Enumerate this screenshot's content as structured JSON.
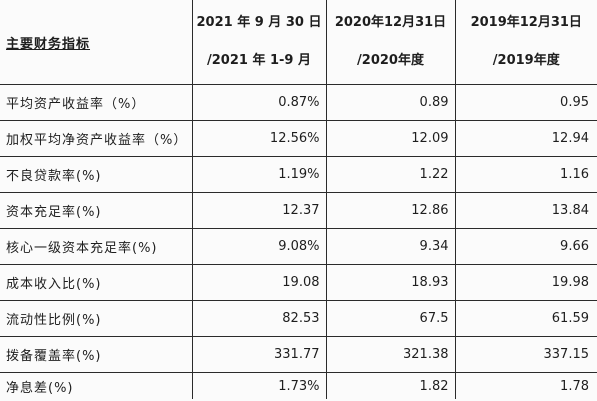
{
  "table": {
    "title": "主要财务指标",
    "periods": [
      {
        "line1": "2021 年 9 月 30 日",
        "line2": "/2021 年 1-9 月"
      },
      {
        "line1": "2020年12月31日",
        "line2": "/2020年度"
      },
      {
        "line1": "2019年12月31日",
        "line2": "/2019年度"
      }
    ],
    "rows": [
      {
        "label": "平均资产收益率（%）",
        "values": [
          "0.87%",
          "0.89",
          "0.95"
        ]
      },
      {
        "label": "加权平均净资产收益率（%）",
        "values": [
          "12.56%",
          "12.09",
          "12.94"
        ]
      },
      {
        "label": "不良贷款率(%)",
        "values": [
          "1.19%",
          "1.22",
          "1.16"
        ]
      },
      {
        "label": "资本充足率(%)",
        "values": [
          "12.37",
          "12.86",
          "13.84"
        ]
      },
      {
        "label": "核心一级资本充足率(%)",
        "values": [
          "9.08%",
          "9.34",
          "9.66"
        ]
      },
      {
        "label": "成本收入比(%)",
        "values": [
          "19.08",
          "18.93",
          "19.98"
        ]
      },
      {
        "label": "流动性比例(%)",
        "values": [
          "82.53",
          "67.5",
          "61.59"
        ]
      },
      {
        "label": "拨备覆盖率(%)",
        "values": [
          "331.77",
          "321.38",
          "337.15"
        ]
      },
      {
        "label": "净息差(%)",
        "values": [
          "1.73%",
          "1.82",
          "1.78"
        ]
      }
    ]
  }
}
